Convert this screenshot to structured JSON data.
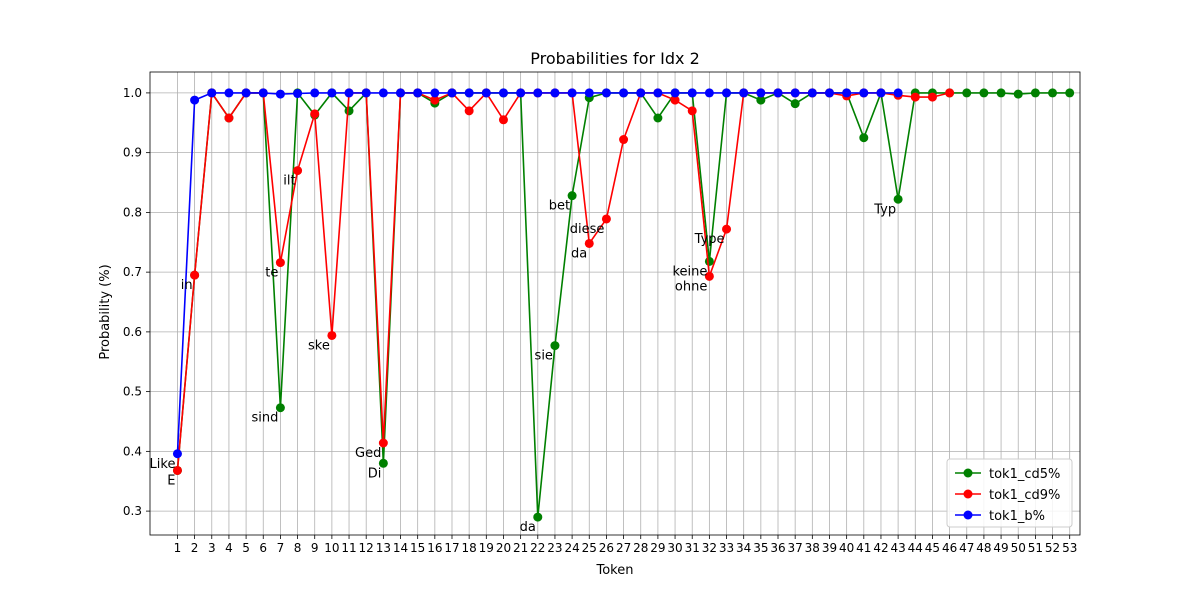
{
  "chart_data": {
    "type": "line",
    "title": "Probabilities for Idx 2",
    "xlabel": "Token",
    "ylabel": "Probability (%)",
    "ylim": [
      0.26,
      1.035
    ],
    "xlim": [
      -0.6,
      53.6
    ],
    "grid": true,
    "legend_position": "bottom-right",
    "x_ticks": [
      "1",
      "2",
      "3",
      "4",
      "5",
      "6",
      "7",
      "8",
      "9",
      "10",
      "11",
      "12",
      "13",
      "14",
      "15",
      "16",
      "17",
      "18",
      "19",
      "20",
      "21",
      "22",
      "23",
      "24",
      "25",
      "26",
      "27",
      "28",
      "29",
      "30",
      "31",
      "32",
      "33",
      "34",
      "35",
      "36",
      "37",
      "38",
      "39",
      "40",
      "41",
      "42",
      "43",
      "44",
      "45",
      "46",
      "47",
      "48",
      "49",
      "50",
      "51",
      "52",
      "53"
    ],
    "y_ticks": [
      "0.3",
      "0.4",
      "0.5",
      "0.6",
      "0.7",
      "0.8",
      "0.9",
      "1.0"
    ],
    "series": [
      {
        "name": "tok1_cd5%",
        "color": "#008000",
        "values": [
          0.368,
          0.695,
          1.0,
          0.958,
          1.0,
          1.0,
          0.473,
          1.0,
          0.963,
          1.0,
          0.97,
          1.0,
          0.38,
          1.0,
          1.0,
          0.983,
          1.0,
          1.0,
          1.0,
          1.0,
          1.0,
          0.29,
          0.577,
          0.828,
          0.992,
          1.0,
          1.0,
          1.0,
          0.958,
          1.0,
          1.0,
          0.718,
          1.0,
          1.0,
          0.988,
          1.0,
          0.982,
          1.0,
          1.0,
          1.0,
          0.925,
          1.0,
          0.822,
          1.0,
          1.0,
          1.0,
          1.0,
          1.0,
          1.0,
          0.998,
          1.0,
          1.0,
          1.0
        ]
      },
      {
        "name": "tok1_cd9%",
        "color": "#ff0000",
        "values": [
          0.368,
          0.695,
          1.0,
          0.958,
          1.0,
          1.0,
          0.716,
          0.87,
          0.965,
          0.594,
          1.0,
          1.0,
          0.414,
          1.0,
          1.0,
          0.988,
          1.0,
          0.97,
          1.0,
          0.955,
          1.0,
          1.0,
          1.0,
          1.0,
          0.748,
          0.789,
          0.922,
          1.0,
          1.0,
          0.988,
          0.97,
          0.693,
          0.772,
          1.0,
          1.0,
          1.0,
          1.0,
          1.0,
          1.0,
          0.995,
          1.0,
          1.0,
          0.996,
          0.993,
          0.993,
          1.0
        ]
      },
      {
        "name": "tok1_b%",
        "color": "#0000ff",
        "values": [
          0.396,
          0.988,
          1.0,
          1.0,
          1.0,
          1.0,
          0.998,
          0.999,
          1.0,
          1.0,
          1.0,
          1.0,
          1.0,
          1.0,
          1.0,
          1.0,
          1.0,
          1.0,
          1.0,
          1.0,
          1.0,
          1.0,
          1.0,
          1.0,
          1.0,
          1.0,
          1.0,
          1.0,
          1.0,
          1.0,
          1.0,
          1.0,
          1.0,
          1.0,
          1.0,
          1.0,
          1.0,
          1.0,
          1.0,
          1.0,
          1.0,
          1.0,
          1.0
        ]
      }
    ],
    "annotations": [
      {
        "text": "Like",
        "x": 1,
        "y": 0.396
      },
      {
        "text": "E",
        "x": 1,
        "y": 0.368
      },
      {
        "text": "in",
        "x": 2,
        "y": 0.695
      },
      {
        "text": "te",
        "x": 7,
        "y": 0.716
      },
      {
        "text": "sind",
        "x": 7,
        "y": 0.473
      },
      {
        "text": "ilt",
        "x": 8,
        "y": 0.87
      },
      {
        "text": "ske",
        "x": 10,
        "y": 0.594
      },
      {
        "text": "Ged",
        "x": 13,
        "y": 0.414
      },
      {
        "text": "Di",
        "x": 13,
        "y": 0.38
      },
      {
        "text": "da",
        "x": 22,
        "y": 0.29
      },
      {
        "text": "sie",
        "x": 23,
        "y": 0.577
      },
      {
        "text": "bet",
        "x": 24,
        "y": 0.828
      },
      {
        "text": "diese",
        "x": 26,
        "y": 0.789
      },
      {
        "text": "da",
        "x": 25,
        "y": 0.748
      },
      {
        "text": "Type",
        "x": 33,
        "y": 0.772
      },
      {
        "text": "keine",
        "x": 32,
        "y": 0.718
      },
      {
        "text": "ohne",
        "x": 32,
        "y": 0.693
      },
      {
        "text": "Typ",
        "x": 43,
        "y": 0.822
      }
    ]
  }
}
